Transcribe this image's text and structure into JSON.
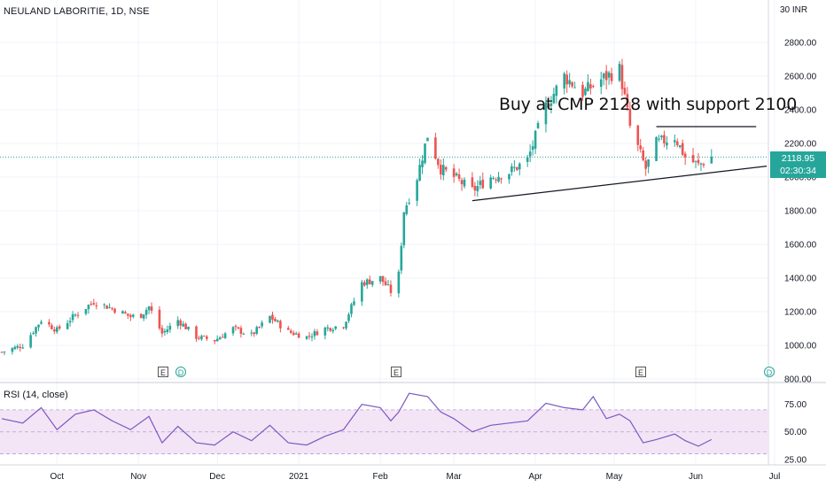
{
  "header": {
    "symbol_title": "NEULAND LABORITIE, 1D, NSE"
  },
  "price_scale": {
    "currency": "30 INR"
  },
  "last_price": {
    "price": "2118.95",
    "countdown": "02:30:34",
    "color": "#26a69a"
  },
  "annotation": {
    "text": "Buy at CMP 2128 with support 2100"
  },
  "rsi_panel": {
    "title": "RSI (14, close)"
  },
  "events": {
    "earnings_label": "E",
    "dividend_label": "D"
  },
  "colors": {
    "up": "#26a69a",
    "down": "#ef5350",
    "rsi_line": "#7e57c2",
    "rsi_band": "#f3e5f5",
    "grid": "#f0f3fa"
  },
  "chart_data": [
    {
      "type": "candlestick",
      "title": "NEULAND LABORITIE, 1D, NSE",
      "ylim": [
        800,
        3000
      ],
      "y_ticks": [
        "2800.00",
        "2600.00",
        "2400.00",
        "2200.00",
        "2000.00",
        "1800.00",
        "1600.00",
        "1400.00",
        "1200.00",
        "1000.00",
        "800.00"
      ],
      "x_ticks": [
        "Oct",
        "Nov",
        "Dec",
        "2021",
        "Feb",
        "Mar",
        "Apr",
        "May",
        "Jun",
        "Jul"
      ],
      "close_path": [
        [
          "2020-09-10",
          960
        ],
        [
          "2020-09-18",
          1000
        ],
        [
          "2020-09-25",
          1150
        ],
        [
          "2020-10-01",
          1090
        ],
        [
          "2020-10-08",
          1180
        ],
        [
          "2020-10-15",
          1260
        ],
        [
          "2020-10-22",
          1220
        ],
        [
          "2020-10-29",
          1170
        ],
        [
          "2020-11-02",
          1180
        ],
        [
          "2020-11-05",
          1230
        ],
        [
          "2020-11-10",
          1070
        ],
        [
          "2020-11-16",
          1150
        ],
        [
          "2020-11-23",
          1050
        ],
        [
          "2020-11-30",
          1030
        ],
        [
          "2020-12-07",
          1100
        ],
        [
          "2020-12-14",
          1060
        ],
        [
          "2020-12-21",
          1170
        ],
        [
          "2020-12-28",
          1080
        ],
        [
          "2021-01-04",
          1050
        ],
        [
          "2021-01-11",
          1100
        ],
        [
          "2021-01-18",
          1120
        ],
        [
          "2021-01-25",
          1370
        ],
        [
          "2021-02-01",
          1400
        ],
        [
          "2021-02-05",
          1320
        ],
        [
          "2021-02-08",
          1420
        ],
        [
          "2021-02-10",
          1800
        ],
        [
          "2021-02-15",
          2000
        ],
        [
          "2021-02-19",
          2250
        ],
        [
          "2021-02-24",
          2050
        ],
        [
          "2021-03-01",
          2000
        ],
        [
          "2021-03-08",
          1920
        ],
        [
          "2021-03-15",
          2000
        ],
        [
          "2021-03-22",
          2030
        ],
        [
          "2021-03-29",
          2100
        ],
        [
          "2021-04-05",
          2420
        ],
        [
          "2021-04-12",
          2600
        ],
        [
          "2021-04-19",
          2500
        ],
        [
          "2021-04-26",
          2580
        ],
        [
          "2021-05-03",
          2640
        ],
        [
          "2021-05-07",
          2300
        ],
        [
          "2021-05-13",
          2050
        ],
        [
          "2021-05-17",
          2200
        ],
        [
          "2021-05-24",
          2240
        ],
        [
          "2021-05-28",
          2120
        ],
        [
          "2021-06-02",
          2070
        ],
        [
          "2021-06-07",
          2120
        ]
      ],
      "trendlines": [
        {
          "from": [
            "2021-03-08",
            1860
          ],
          "to": [
            "2021-06-28",
            2065
          ]
        },
        {
          "from": [
            "2021-05-17",
            2300
          ],
          "to": [
            "2021-06-24",
            2300
          ]
        }
      ],
      "last_value": 2118.95,
      "annotation": "Buy at CMP 2128 with support 2100"
    },
    {
      "type": "line",
      "title": "RSI (14, close)",
      "ylim": [
        20,
        90
      ],
      "y_ticks": [
        "75.00",
        "50.00",
        "25.00"
      ],
      "band": [
        30,
        70
      ],
      "series": [
        {
          "values": [
            [
              "2020-09-10",
              62
            ],
            [
              "2020-09-18",
              58
            ],
            [
              "2020-09-25",
              72
            ],
            [
              "2020-10-01",
              52
            ],
            [
              "2020-10-08",
              66
            ],
            [
              "2020-10-15",
              70
            ],
            [
              "2020-10-22",
              60
            ],
            [
              "2020-10-29",
              52
            ],
            [
              "2020-11-05",
              64
            ],
            [
              "2020-11-10",
              40
            ],
            [
              "2020-11-16",
              55
            ],
            [
              "2020-11-23",
              40
            ],
            [
              "2020-11-30",
              38
            ],
            [
              "2020-12-07",
              50
            ],
            [
              "2020-12-14",
              42
            ],
            [
              "2020-12-21",
              56
            ],
            [
              "2020-12-28",
              40
            ],
            [
              "2021-01-04",
              38
            ],
            [
              "2021-01-11",
              46
            ],
            [
              "2021-01-18",
              52
            ],
            [
              "2021-01-25",
              75
            ],
            [
              "2021-02-01",
              72
            ],
            [
              "2021-02-05",
              60
            ],
            [
              "2021-02-08",
              68
            ],
            [
              "2021-02-12",
              85
            ],
            [
              "2021-02-19",
              82
            ],
            [
              "2021-02-24",
              68
            ],
            [
              "2021-03-01",
              62
            ],
            [
              "2021-03-08",
              50
            ],
            [
              "2021-03-15",
              56
            ],
            [
              "2021-03-22",
              58
            ],
            [
              "2021-03-29",
              60
            ],
            [
              "2021-04-05",
              76
            ],
            [
              "2021-04-12",
              72
            ],
            [
              "2021-04-19",
              70
            ],
            [
              "2021-04-23",
              82
            ],
            [
              "2021-04-28",
              62
            ],
            [
              "2021-05-03",
              66
            ],
            [
              "2021-05-07",
              60
            ],
            [
              "2021-05-12",
              40
            ],
            [
              "2021-05-17",
              43
            ],
            [
              "2021-05-24",
              48
            ],
            [
              "2021-05-28",
              42
            ],
            [
              "2021-06-02",
              37
            ],
            [
              "2021-06-07",
              43
            ]
          ]
        }
      ]
    }
  ]
}
